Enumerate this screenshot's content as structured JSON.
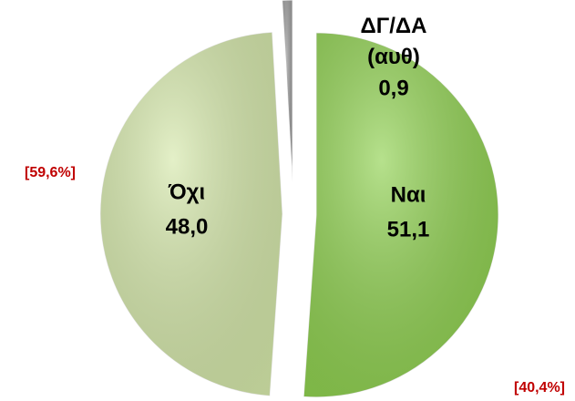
{
  "chart_data": {
    "type": "pie",
    "categories": [
      "Ναι",
      "Όχι",
      "ΔΓ/ΔΑ (αυθ)"
    ],
    "values": [
      51.1,
      48.0,
      0.9
    ],
    "value_labels": [
      "51,1",
      "48,0",
      "0,9"
    ],
    "colors": [
      "#8fd14f",
      "#d5e8aa",
      "#9a9a9a"
    ],
    "annotations": [
      "[59,6%]",
      "[40,4%]"
    ]
  }
}
